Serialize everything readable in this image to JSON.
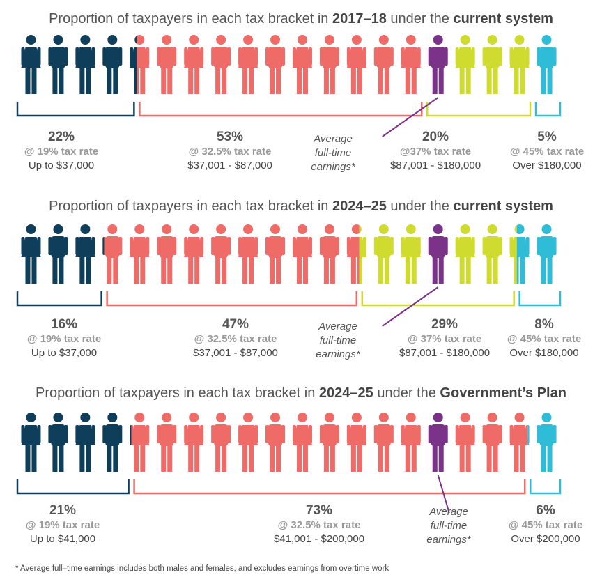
{
  "colors": {
    "navy": "#0e3e5a",
    "salmon": "#ef6b67",
    "lime": "#cfdc2f",
    "cyan": "#2fbcd7",
    "purple": "#7b3289"
  },
  "avg_label": [
    "Average",
    "full-time",
    "earnings*"
  ],
  "footnote": "* Average full–time earnings includes both males and females, and excludes earnings from overtime work",
  "chart_data": [
    {
      "type": "pictograph",
      "title": {
        "pre": "Proportion of taxpayers in each tax bracket in ",
        "year": "2017–18",
        "mid": " under the ",
        "system": "current system"
      },
      "series": [
        {
          "name": "Up to $37,000",
          "pct_label": "22%",
          "rate_label": "@ 19% tax rate",
          "value": 22,
          "color": "navy"
        },
        {
          "name": "$37,001 - $87,000",
          "pct_label": "53%",
          "rate_label": "@ 32.5% tax rate",
          "value": 53,
          "color": "salmon"
        },
        {
          "name": "$87,001 - $180,000",
          "pct_label": "20%",
          "rate_label": "@37% tax rate",
          "value": 20,
          "color": "lime"
        },
        {
          "name": "Over $180,000",
          "pct_label": "5%",
          "rate_label": "@ 45% tax rate",
          "value": 5,
          "color": "cyan"
        }
      ],
      "average_figure_index": 15
    },
    {
      "type": "pictograph",
      "title": {
        "pre": "Proportion of taxpayers in each tax bracket in ",
        "year": "2024–25",
        "mid": " under the ",
        "system": "current system"
      },
      "series": [
        {
          "name": "Up to $37,000",
          "pct_label": "16%",
          "rate_label": "@ 19% tax rate",
          "value": 16,
          "color": "navy"
        },
        {
          "name": "$37,001 - $87,000",
          "pct_label": "47%",
          "rate_label": "@ 32.5% tax rate",
          "value": 47,
          "color": "salmon"
        },
        {
          "name": "$87,001 - $180,000",
          "pct_label": "29%",
          "rate_label": "@ 37% tax rate",
          "value": 29,
          "color": "lime"
        },
        {
          "name": "Over $180,000",
          "pct_label": "8%",
          "rate_label": "@ 45% tax rate",
          "value": 8,
          "color": "cyan"
        }
      ],
      "average_figure_index": 15
    },
    {
      "type": "pictograph",
      "title": {
        "pre": "Proportion of taxpayers in each tax bracket in ",
        "year": "2024–25",
        "mid": " under the ",
        "system": "Government’s Plan"
      },
      "series": [
        {
          "name": "Up to $41,000",
          "pct_label": "21%",
          "rate_label": "@ 19% tax rate",
          "value": 21,
          "color": "navy"
        },
        {
          "name": "$41,001 - $200,000",
          "pct_label": "73%",
          "rate_label": "@ 32.5% tax rate",
          "value": 73,
          "color": "salmon"
        },
        {
          "name": "Over $200,000",
          "pct_label": "6%",
          "rate_label": "@ 45% tax rate",
          "value": 6,
          "color": "cyan"
        }
      ],
      "average_figure_index": 15
    }
  ]
}
